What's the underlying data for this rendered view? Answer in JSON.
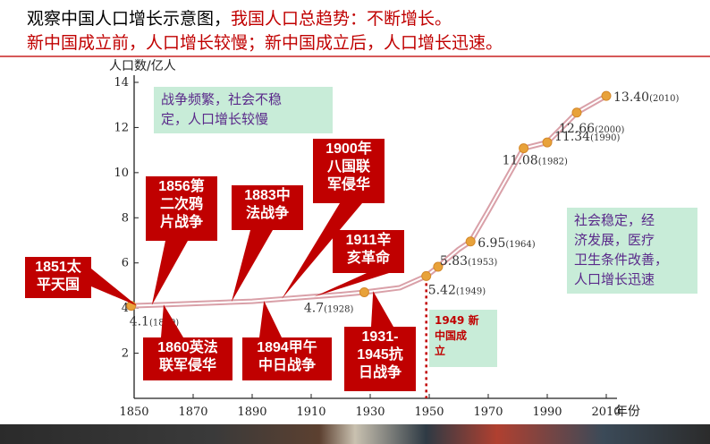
{
  "header": {
    "line1_black": "观察中国人口增长示意图，",
    "line1_red": "我国人口总趋势：不断增长。",
    "line2": "新中国成立前，人口增长较慢；新中国成立后，人口增长迅速。"
  },
  "chart_data": {
    "type": "line",
    "ylabel": "人口数/亿人",
    "xlabel": "年份",
    "xlim": [
      1850,
      2010
    ],
    "ylim": [
      0,
      14
    ],
    "x_ticks": [
      "1850",
      "1870",
      "1890",
      "1910",
      "1930",
      "1950",
      "1970",
      "1990",
      "2010"
    ],
    "y_ticks": [
      "2",
      "4",
      "6",
      "8",
      "10",
      "12",
      "14"
    ],
    "series": [
      {
        "x": [
          1849,
          1860,
          1870,
          1880,
          1890,
          1900,
          1910,
          1920,
          1928,
          1940,
          1949,
          1953,
          1960,
          1964,
          1970,
          1982,
          1990,
          2000,
          2010
        ],
        "values": [
          4.1,
          4.15,
          4.2,
          4.25,
          4.3,
          4.4,
          4.5,
          4.6,
          4.7,
          4.9,
          5.42,
          5.83,
          6.6,
          6.95,
          8.3,
          11.08,
          11.34,
          12.66,
          13.4
        ]
      }
    ],
    "data_labels": [
      {
        "year": 1849,
        "value": "4.1",
        "note": "(1849)"
      },
      {
        "year": 1928,
        "value": "4.7",
        "note": "(1928)"
      },
      {
        "year": 1949,
        "value": "5.42",
        "note": "(1949)"
      },
      {
        "year": 1953,
        "value": "5.83",
        "note": "(1953)"
      },
      {
        "year": 1964,
        "value": "6.95",
        "note": "(1964)"
      },
      {
        "year": 1982,
        "value": "11.08",
        "note": "(1982)"
      },
      {
        "year": 1990,
        "value": "11.34",
        "note": "(1990)"
      },
      {
        "year": 2000,
        "value": "12.66",
        "note": "(2000)"
      },
      {
        "year": 2010,
        "value": "13.40",
        "note": "(2010)"
      }
    ],
    "colors": {
      "line_outer": "#d9a0a8",
      "line_inner": "#ffffff",
      "marker": "#e8a23a",
      "event": "#c00000",
      "divider": "#c00000"
    }
  },
  "events": {
    "taiping": "1851太\n平天国",
    "opium2": "1856第\n二次鸦\n片战争",
    "sinofrench": "1883中\n法战争",
    "eightnation": "1900年\n八国联\n军侵华",
    "xinhai": "1911辛\n亥革命",
    "anglofrench": "1860英法\n联军侵华",
    "jiawu": "1894甲午\n中日战争",
    "antijapan": "1931-\n1945抗\n日战争"
  },
  "notes": {
    "war": "战争频繁，社会不稳\n定，人口增长较慢",
    "stable": "社会稳定，经\n济发展，医疗\n卫生条件改善，\n人口增长迅速",
    "founding": "1949 新\n中国成\n立"
  }
}
